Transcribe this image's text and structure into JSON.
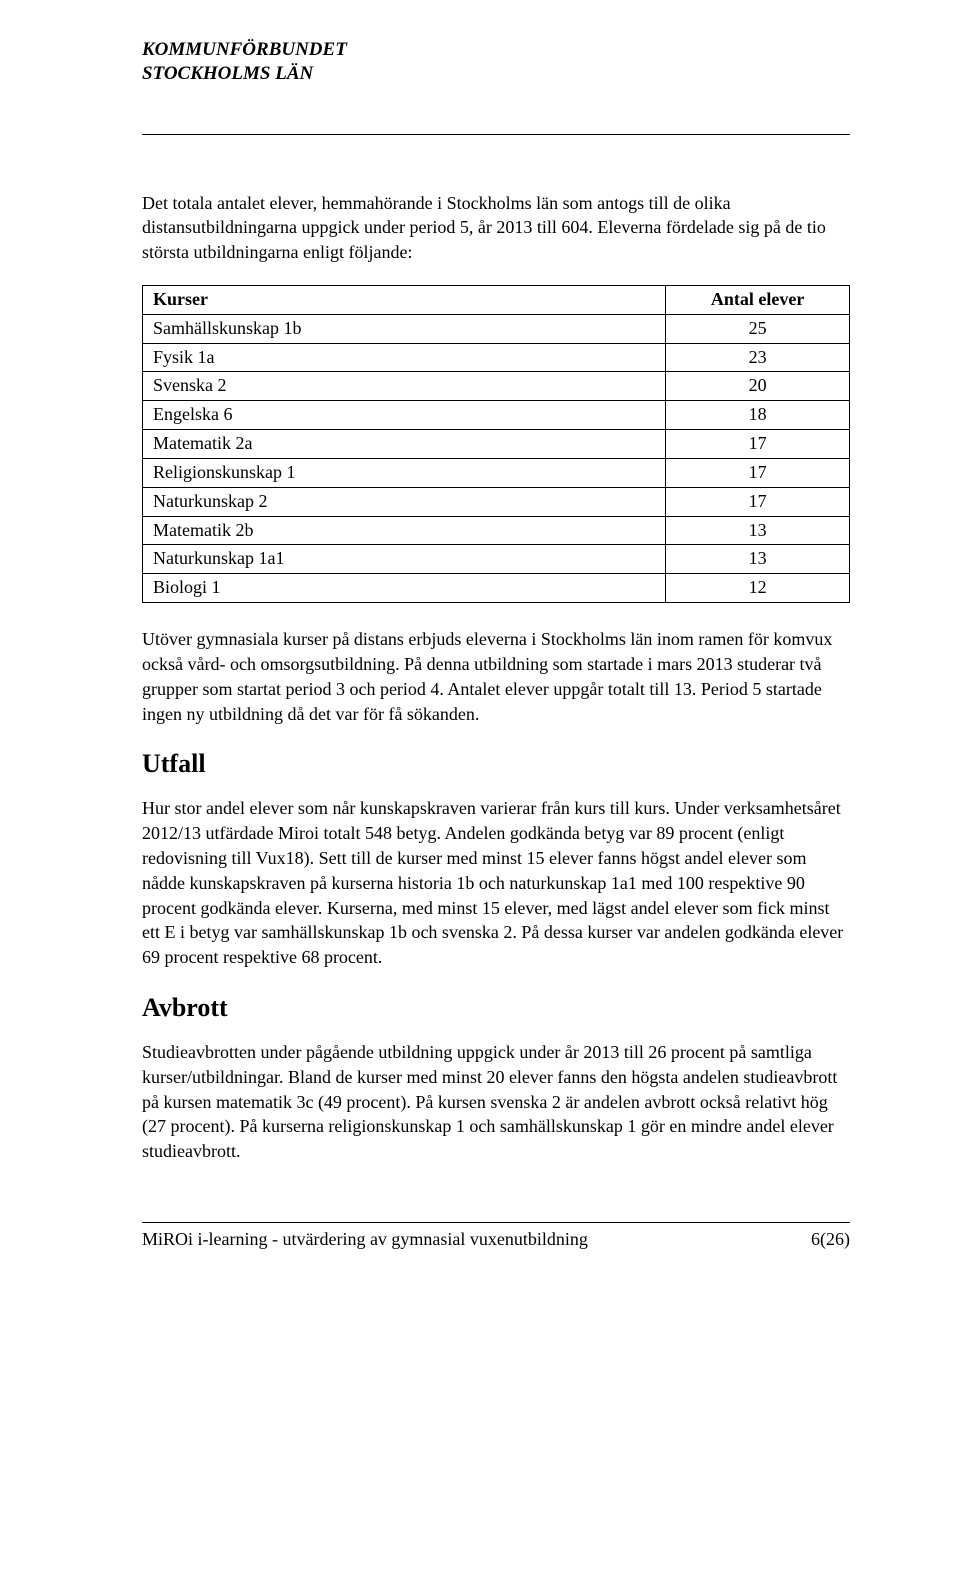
{
  "header": {
    "org_line1": "KOMMUNFÖRBUNDET",
    "org_line2": "STOCKHOLMS LÄN"
  },
  "intro_paragraph": "Det totala antalet elever, hemmahörande i Stockholms län som antogs till de olika distansutbildningarna uppgick under period 5, år 2013 till 604. Eleverna fördelade sig på de tio största utbildningarna enligt följande:",
  "table": {
    "col1_header": "Kurser",
    "col2_header": "Antal elever",
    "col1_width_pct": 74,
    "col2_width_pct": 26,
    "border_color": "#000000",
    "font_size_pt": 13,
    "rows": [
      [
        "Samhällskunskap 1b",
        "25"
      ],
      [
        "Fysik 1a",
        "23"
      ],
      [
        "Svenska 2",
        "20"
      ],
      [
        "Engelska 6",
        "18"
      ],
      [
        "Matematik 2a",
        "17"
      ],
      [
        "Religionskunskap 1",
        "17"
      ],
      [
        "Naturkunskap 2",
        "17"
      ],
      [
        "Matematik 2b",
        "13"
      ],
      [
        "Naturkunskap 1a1",
        "13"
      ],
      [
        "Biologi 1",
        "12"
      ]
    ]
  },
  "para_after_table": "Utöver gymnasiala kurser på distans erbjuds eleverna i Stockholms län inom ramen för komvux också vård- och omsorgsutbildning. På denna utbildning som startade i mars 2013 studerar två grupper som startat period 3 och period 4. Antalet elever uppgår totalt till 13. Period 5 startade ingen ny utbildning då det var för få sökanden.",
  "section_utfall": {
    "heading": "Utfall",
    "body": "Hur stor andel elever som når kunskapskraven varierar från kurs till kurs. Under verksamhetsåret 2012/13 utfärdade Miroi totalt 548 betyg. Andelen godkända betyg var 89 procent (enligt redovisning till Vux18). Sett till de kurser med minst 15 elever fanns högst andel elever som nådde kunskapskraven på kurserna historia 1b och naturkunskap 1a1 med 100 respektive 90 procent godkända elever. Kurserna, med minst 15 elever, med lägst andel elever som fick minst ett E i betyg var samhällskunskap 1b och svenska 2. På dessa kurser var andelen godkända elever 69 procent respektive 68 procent."
  },
  "section_avbrott": {
    "heading": "Avbrott",
    "body": "Studieavbrotten under pågående utbildning uppgick under år 2013 till 26 procent på samtliga kurser/utbildningar. Bland de kurser med minst 20 elever fanns den högsta andelen studieavbrott på kursen matematik 3c (49 procent). På kursen svenska 2 är andelen avbrott också relativt hög (27 procent). På kurserna religionskunskap 1 och samhällskunskap 1 gör en mindre andel elever studieavbrott."
  },
  "footer": {
    "left": "MiROi i-learning - utvärdering av gymnasial vuxenutbildning",
    "right": "6(26)"
  },
  "colors": {
    "text": "#000000",
    "background": "#ffffff",
    "rule": "#000000"
  },
  "typography": {
    "body_font_family": "Georgia, serif",
    "body_font_size_pt": 13,
    "heading_font_size_pt": 19,
    "header_italic": true,
    "header_bold": true
  }
}
